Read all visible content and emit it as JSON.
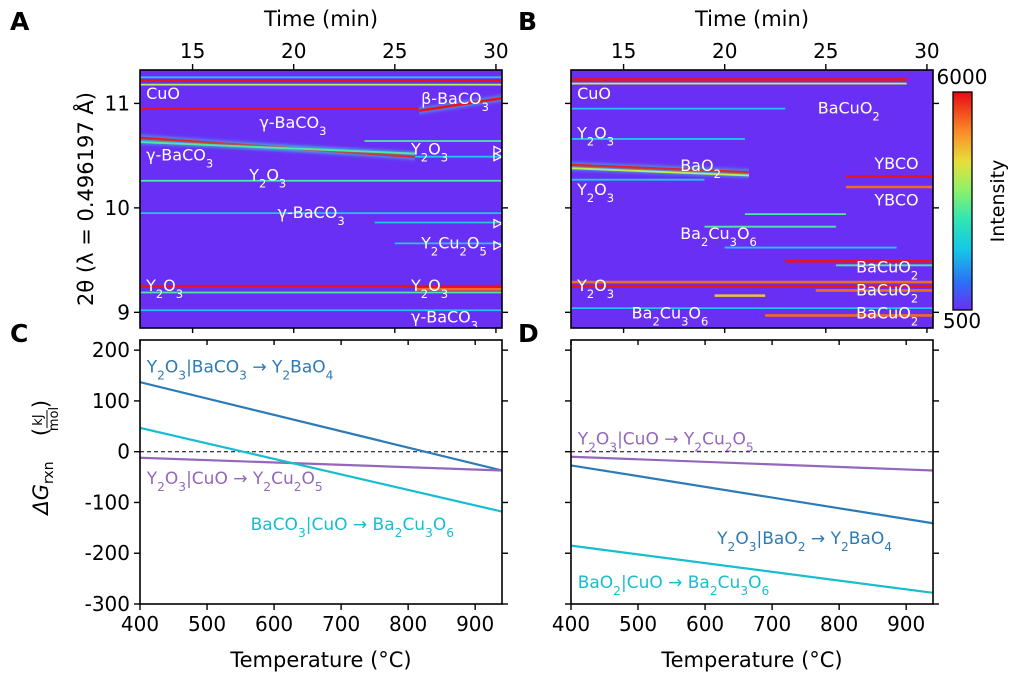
{
  "panel_letters": [
    "A",
    "B",
    "C",
    "D"
  ],
  "colorbar": {
    "label": "Intensity",
    "max_label": "6000",
    "min_label": "500",
    "min": 500,
    "max": 6000
  },
  "chart_data": [
    {
      "id": "A",
      "type": "heatmap",
      "xlabel": "Time (min)",
      "ylabel": "2θ (λ = 0.496197 Å)",
      "xlim": [
        12.4,
        30.3
      ],
      "ylim": [
        8.85,
        11.32
      ],
      "xticks": [
        15,
        20,
        25,
        30
      ],
      "yticks": [
        9,
        10,
        11
      ],
      "annotations": [
        {
          "text": "CuO",
          "x": 12.7,
          "y": 11.1
        },
        {
          "text": "β-BaCO₃",
          "x": 26.3,
          "y": 11.05
        },
        {
          "text": "γ-BaCO₃",
          "x": 18.3,
          "y": 10.82
        },
        {
          "text": "Y₂O₃",
          "x": 25.8,
          "y": 10.57
        },
        {
          "text": "γ-BaCO₃",
          "x": 12.7,
          "y": 10.51
        },
        {
          "text": "Y₂O₃",
          "x": 17.8,
          "y": 10.32
        },
        {
          "text": "γ-BaCO₃",
          "x": 19.2,
          "y": 9.96
        },
        {
          "text": "Y₂Cu₂O₅",
          "x": 26.3,
          "y": 9.67
        },
        {
          "text": "Y₂O₃",
          "x": 12.7,
          "y": 9.26
        },
        {
          "text": "Y₂O₃",
          "x": 25.8,
          "y": 9.26
        },
        {
          "text": "γ-BaCO₃",
          "x": 25.8,
          "y": 8.96
        }
      ],
      "peaks": [
        {
          "y0": 11.25,
          "y1": 11.25,
          "t0": 12.4,
          "t1": 30.3,
          "i": 0.35
        },
        {
          "y0": 11.22,
          "y1": 11.22,
          "t0": 12.4,
          "t1": 30.3,
          "i": 1.0
        },
        {
          "y0": 11.18,
          "y1": 11.18,
          "t0": 12.4,
          "t1": 30.3,
          "i": 0.6
        },
        {
          "y0": 10.95,
          "y1": 10.95,
          "t0": 12.4,
          "t1": 26.2,
          "i": 0.95
        },
        {
          "y0": 10.93,
          "y1": 11.05,
          "t0": 26.2,
          "t1": 30.3,
          "i": 1.0
        },
        {
          "y0": 10.67,
          "y1": 10.49,
          "t0": 12.4,
          "t1": 26.0,
          "i": 1.0
        },
        {
          "y0": 10.63,
          "y1": 10.52,
          "t0": 12.4,
          "t1": 26.0,
          "i": 0.5
        },
        {
          "y0": 10.64,
          "y1": 10.64,
          "t0": 23.5,
          "t1": 30.3,
          "i": 0.45
        },
        {
          "y0": 10.49,
          "y1": 10.49,
          "t0": 26.0,
          "t1": 30.3,
          "i": 0.35
        },
        {
          "y0": 10.26,
          "y1": 10.26,
          "t0": 12.4,
          "t1": 30.3,
          "i": 0.4
        },
        {
          "y0": 9.95,
          "y1": 9.95,
          "t0": 12.4,
          "t1": 30.3,
          "i": 0.25
        },
        {
          "y0": 9.86,
          "y1": 9.86,
          "t0": 24.0,
          "t1": 30.3,
          "i": 0.3
        },
        {
          "y0": 9.66,
          "y1": 9.66,
          "t0": 25.0,
          "t1": 30.3,
          "i": 0.3
        },
        {
          "y0": 9.25,
          "y1": 9.25,
          "t0": 12.4,
          "t1": 30.3,
          "i": 0.95
        },
        {
          "y0": 9.22,
          "y1": 9.22,
          "t0": 26.0,
          "t1": 30.3,
          "i": 0.9
        },
        {
          "y0": 9.19,
          "y1": 9.19,
          "t0": 12.4,
          "t1": 30.3,
          "i": 0.45
        },
        {
          "y0": 9.02,
          "y1": 9.02,
          "t0": 12.4,
          "t1": 30.3,
          "i": 0.35
        }
      ],
      "markers": [
        {
          "x": 30.1,
          "y": 10.55
        },
        {
          "x": 30.1,
          "y": 10.49
        },
        {
          "x": 30.1,
          "y": 9.85
        },
        {
          "x": 30.1,
          "y": 9.64
        }
      ]
    },
    {
      "id": "B",
      "type": "heatmap",
      "xlabel": "Time (min)",
      "xlim": [
        12.4,
        30.3
      ],
      "ylim": [
        8.85,
        11.32
      ],
      "xticks": [
        15,
        20,
        25,
        30
      ],
      "yticks": [
        9,
        10,
        11
      ],
      "annotations": [
        {
          "text": "CuO",
          "x": 12.7,
          "y": 11.1
        },
        {
          "text": "BaCuO₂",
          "x": 24.6,
          "y": 10.96
        },
        {
          "text": "Y₂O₃",
          "x": 12.7,
          "y": 10.72
        },
        {
          "text": "BaO₂",
          "x": 17.8,
          "y": 10.41
        },
        {
          "text": "YBCO",
          "x": 27.4,
          "y": 10.43
        },
        {
          "text": "Y₂O₃",
          "x": 12.7,
          "y": 10.18
        },
        {
          "text": "YBCO",
          "x": 27.4,
          "y": 10.08
        },
        {
          "text": "Ba₂Cu₃O₆",
          "x": 17.8,
          "y": 9.76
        },
        {
          "text": "BaCuO₂",
          "x": 26.5,
          "y": 9.44
        },
        {
          "text": "Y₂O₃",
          "x": 12.7,
          "y": 9.26
        },
        {
          "text": "BaCuO₂",
          "x": 26.5,
          "y": 9.22
        },
        {
          "text": "Ba₂Cu₃O₆",
          "x": 15.4,
          "y": 9.0
        },
        {
          "text": "BaCuO₂",
          "x": 26.5,
          "y": 9.0
        }
      ],
      "peaks": [
        {
          "y0": 11.23,
          "y1": 11.23,
          "t0": 12.4,
          "t1": 29.0,
          "i": 1.0
        },
        {
          "y0": 11.19,
          "y1": 11.19,
          "t0": 12.4,
          "t1": 29.0,
          "i": 0.55
        },
        {
          "y0": 10.95,
          "y1": 10.95,
          "t0": 12.4,
          "t1": 23.0,
          "i": 0.35
        },
        {
          "y0": 10.66,
          "y1": 10.66,
          "t0": 12.4,
          "t1": 21.0,
          "i": 0.3
        },
        {
          "y0": 10.41,
          "y1": 10.34,
          "t0": 12.4,
          "t1": 21.2,
          "i": 1.0
        },
        {
          "y0": 10.38,
          "y1": 10.31,
          "t0": 12.4,
          "t1": 21.2,
          "i": 0.6
        },
        {
          "y0": 10.27,
          "y1": 10.27,
          "t0": 12.4,
          "t1": 19.0,
          "i": 0.3
        },
        {
          "y0": 10.3,
          "y1": 10.3,
          "t0": 26.0,
          "t1": 30.3,
          "i": 0.95
        },
        {
          "y0": 10.2,
          "y1": 10.2,
          "t0": 26.0,
          "t1": 30.3,
          "i": 0.9
        },
        {
          "y0": 9.94,
          "y1": 9.94,
          "t0": 21.0,
          "t1": 26.0,
          "i": 0.45
        },
        {
          "y0": 9.82,
          "y1": 9.82,
          "t0": 19.0,
          "t1": 25.5,
          "i": 0.4
        },
        {
          "y0": 9.62,
          "y1": 9.62,
          "t0": 20.0,
          "t1": 28.5,
          "i": 0.35
        },
        {
          "y0": 9.49,
          "y1": 9.49,
          "t0": 23.0,
          "t1": 30.3,
          "i": 0.95
        },
        {
          "y0": 9.45,
          "y1": 9.45,
          "t0": 25.5,
          "t1": 30.3,
          "i": 0.45
        },
        {
          "y0": 9.29,
          "y1": 9.29,
          "t0": 12.4,
          "t1": 30.3,
          "i": 0.85
        },
        {
          "y0": 9.25,
          "y1": 9.25,
          "t0": 12.4,
          "t1": 30.3,
          "i": 0.95
        },
        {
          "y0": 9.21,
          "y1": 9.21,
          "t0": 24.5,
          "t1": 30.3,
          "i": 0.9
        },
        {
          "y0": 9.16,
          "y1": 9.16,
          "t0": 19.5,
          "t1": 22.0,
          "i": 0.7
        },
        {
          "y0": 8.97,
          "y1": 8.97,
          "t0": 22.0,
          "t1": 30.3,
          "i": 0.9
        },
        {
          "y0": 9.04,
          "y1": 9.04,
          "t0": 12.4,
          "t1": 30.3,
          "i": 0.3
        }
      ]
    },
    {
      "id": "C",
      "type": "line",
      "xlabel": "Temperature (°C)",
      "ylabel": "ΔG_rxn (kJ/mol)",
      "xlim": [
        400,
        940
      ],
      "ylim": [
        -300,
        220
      ],
      "xticks": [
        400,
        500,
        600,
        700,
        800,
        900
      ],
      "yticks": [
        -300,
        -200,
        -100,
        0,
        100,
        200
      ],
      "zero_line": true,
      "series": [
        {
          "name": "Y₂O₃|BaCO₃ → Y₂BaO₄",
          "color": "#2c7bb6",
          "x": [
            400,
            940
          ],
          "y": [
            137,
            -37
          ],
          "label_x": 410,
          "label_y": 168
        },
        {
          "name": "Y₂O₃|CuO → Y₂Cu₂O₅",
          "color": "#9467bd",
          "x": [
            400,
            940
          ],
          "y": [
            -12,
            -37
          ],
          "label_x": 410,
          "label_y": -52
        },
        {
          "name": "BaCO₃|CuO → Ba₂Cu₃O₆",
          "color": "#17becf",
          "x": [
            400,
            940
          ],
          "y": [
            47,
            -118
          ],
          "label_x": 565,
          "label_y": -142
        }
      ]
    },
    {
      "id": "D",
      "type": "line",
      "xlabel": "Temperature (°C)",
      "xlim": [
        400,
        940
      ],
      "ylim": [
        -300,
        220
      ],
      "xticks": [
        400,
        500,
        600,
        700,
        800,
        900
      ],
      "yticks": [
        -300,
        -200,
        -100,
        0,
        100,
        200
      ],
      "zero_line": true,
      "series": [
        {
          "name": "Y₂O₃|CuO → Y₂Cu₂O₅",
          "color": "#9467bd",
          "x": [
            400,
            940
          ],
          "y": [
            -10,
            -37
          ],
          "label_x": 410,
          "label_y": 26
        },
        {
          "name": "Y₂O₃|BaO₂ → Y₂BaO₄",
          "color": "#2c7bb6",
          "x": [
            400,
            940
          ],
          "y": [
            -27,
            -141
          ],
          "label_x": 618,
          "label_y": -170
        },
        {
          "name": "BaO₂|CuO → Ba₂Cu₃O₆",
          "color": "#17becf",
          "x": [
            400,
            940
          ],
          "y": [
            -185,
            -278
          ],
          "label_x": 410,
          "label_y": -257
        }
      ]
    }
  ]
}
